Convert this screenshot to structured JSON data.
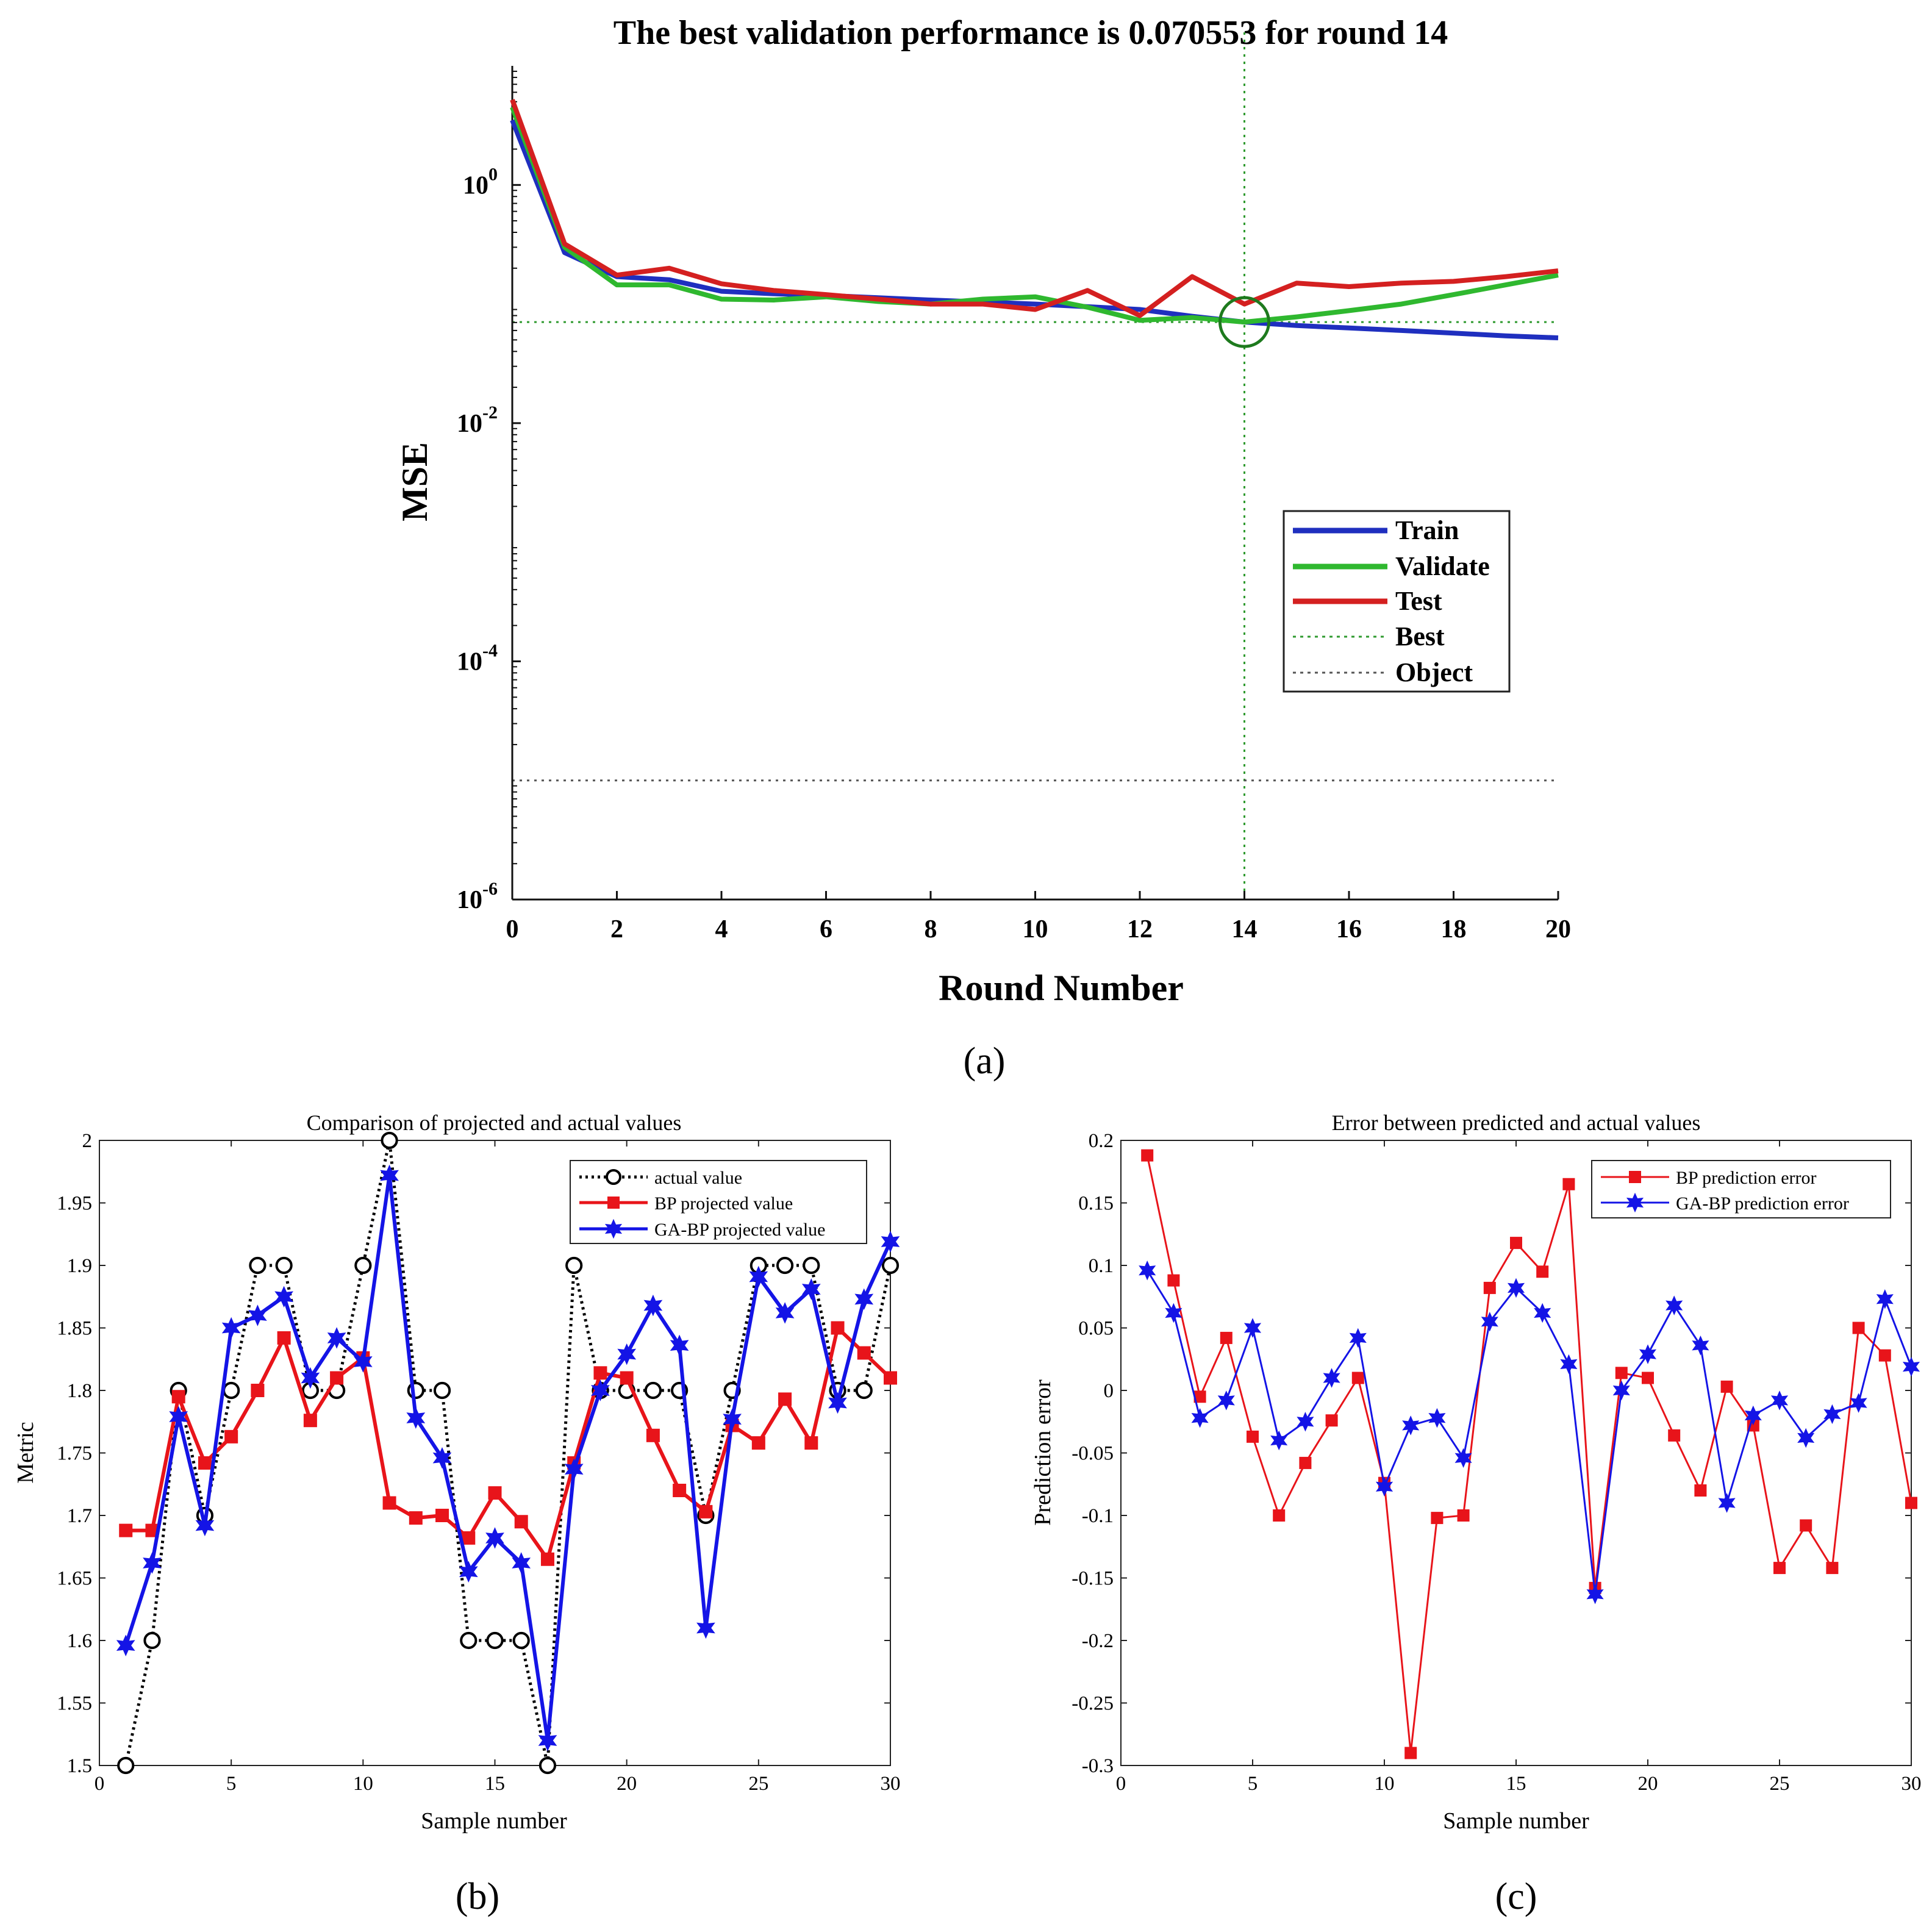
{
  "chart_data": [
    {
      "id": "a",
      "type": "line",
      "title": "The best validation performance is 0.070553 for round 14",
      "xlabel": "Round Number",
      "ylabel": "MSE",
      "caption": "(a)",
      "xlim": [
        0,
        20
      ],
      "ylim_log10": [
        -6,
        1
      ],
      "y_scale": "log",
      "xticks": [
        "0",
        "2",
        "4",
        "6",
        "8",
        "10",
        "12",
        "14",
        "16",
        "18",
        "20"
      ],
      "yticks": [
        {
          "base": "10",
          "exp": "0",
          "log": 0
        },
        {
          "base": "10",
          "exp": "-2",
          "log": -2
        },
        {
          "base": "10",
          "exp": "-4",
          "log": -4
        },
        {
          "base": "10",
          "exp": "-6",
          "log": -6
        }
      ],
      "x": [
        0,
        1,
        2,
        3,
        4,
        5,
        6,
        7,
        8,
        9,
        10,
        11,
        12,
        13,
        14,
        15,
        16,
        17,
        18,
        19,
        20
      ],
      "series": [
        {
          "name": "Train",
          "color": "#1f2fbf",
          "values": [
            3.5,
            0.27,
            0.17,
            0.16,
            0.128,
            0.122,
            0.118,
            0.113,
            0.108,
            0.104,
            0.1,
            0.095,
            0.09,
            0.079,
            0.0706,
            0.066,
            0.063,
            0.06,
            0.057,
            0.054,
            0.052
          ]
        },
        {
          "name": "Validate",
          "color": "#2fb82f",
          "values": [
            4.5,
            0.3,
            0.145,
            0.145,
            0.11,
            0.108,
            0.115,
            0.105,
            0.1,
            0.11,
            0.115,
            0.094,
            0.073,
            0.077,
            0.0706,
            0.078,
            0.088,
            0.1,
            0.12,
            0.145,
            0.175
          ]
        },
        {
          "name": "Test",
          "color": "#d42020",
          "values": [
            5.2,
            0.32,
            0.175,
            0.2,
            0.148,
            0.13,
            0.12,
            0.11,
            0.1,
            0.1,
            0.09,
            0.13,
            0.08,
            0.17,
            0.1,
            0.15,
            0.14,
            0.15,
            0.155,
            0.17,
            0.19
          ]
        }
      ],
      "best": {
        "x": 14,
        "y": 0.070553,
        "color": "#2f9a2f",
        "label": "Best"
      },
      "object": {
        "y": 1e-05,
        "color": "#555555",
        "label": "Object"
      },
      "legend": "right"
    },
    {
      "id": "b",
      "type": "line",
      "title": "Comparison of projected and actual values",
      "xlabel": "Sample number",
      "ylabel": "Metric",
      "caption": "(b)",
      "xlim": [
        0,
        30
      ],
      "ylim": [
        1.5,
        2
      ],
      "xticks": [
        0,
        5,
        10,
        15,
        20,
        25,
        30
      ],
      "yticks": [
        1.5,
        1.55,
        1.6,
        1.65,
        1.7,
        1.75,
        1.8,
        1.85,
        1.9,
        1.95,
        2
      ],
      "ytick_labels": [
        "1.5",
        "1.55",
        "1.6",
        "1.65",
        "1.7",
        "1.75",
        "1.8",
        "1.85",
        "1.9",
        "1.95",
        "2"
      ],
      "x": [
        1,
        2,
        3,
        4,
        5,
        6,
        7,
        8,
        9,
        10,
        11,
        12,
        13,
        14,
        15,
        16,
        17,
        18,
        19,
        20,
        21,
        22,
        23,
        24,
        25,
        26,
        27,
        28,
        29,
        30
      ],
      "series": [
        {
          "name": "actual value",
          "color": "#000000",
          "marker": "circle",
          "dash": "dotted",
          "values": [
            1.5,
            1.6,
            1.8,
            1.7,
            1.8,
            1.9,
            1.9,
            1.8,
            1.8,
            1.9,
            2.0,
            1.8,
            1.8,
            1.6,
            1.6,
            1.6,
            1.5,
            1.9,
            1.8,
            1.8,
            1.8,
            1.8,
            1.7,
            1.8,
            1.9,
            1.9,
            1.9,
            1.8,
            1.8,
            1.9
          ]
        },
        {
          "name": "BP projected value",
          "color": "#e8141a",
          "marker": "square",
          "values": [
            1.688,
            1.688,
            1.795,
            1.742,
            1.763,
            1.8,
            1.842,
            1.776,
            1.81,
            1.826,
            1.71,
            1.698,
            1.7,
            1.682,
            1.718,
            1.695,
            1.665,
            1.742,
            1.814,
            1.81,
            1.764,
            1.72,
            1.703,
            1.772,
            1.758,
            1.793,
            1.758,
            1.85,
            1.83,
            1.81
          ]
        },
        {
          "name": "GA-BP projected value",
          "color": "#1414e6",
          "marker": "star",
          "values": [
            1.596,
            1.662,
            1.779,
            1.692,
            1.85,
            1.86,
            1.875,
            1.81,
            1.842,
            1.823,
            1.972,
            1.778,
            1.746,
            1.655,
            1.682,
            1.662,
            1.52,
            1.737,
            1.8,
            1.829,
            1.868,
            1.836,
            1.61,
            1.777,
            1.891,
            1.862,
            1.881,
            1.79,
            1.873,
            1.919
          ]
        }
      ],
      "legend": "top-right"
    },
    {
      "id": "c",
      "type": "line",
      "title": "Error between predicted and actual values",
      "xlabel": "Sample number",
      "ylabel": "Prediction error",
      "caption": "(c)",
      "xlim": [
        0,
        30
      ],
      "ylim": [
        -0.3,
        0.2
      ],
      "xticks": [
        0,
        5,
        10,
        15,
        20,
        25,
        30
      ],
      "yticks": [
        -0.3,
        -0.25,
        -0.2,
        -0.15,
        -0.1,
        -0.05,
        0,
        0.05,
        0.1,
        0.15,
        0.2
      ],
      "ytick_labels": [
        "-0.3",
        "-0.25",
        "-0.2",
        "-0.15",
        "-0.1",
        "-0.05",
        "0",
        "0.05",
        "0.1",
        "0.15",
        "0.2"
      ],
      "x": [
        1,
        2,
        3,
        4,
        5,
        6,
        7,
        8,
        9,
        10,
        11,
        12,
        13,
        14,
        15,
        16,
        17,
        18,
        19,
        20,
        21,
        22,
        23,
        24,
        25,
        26,
        27,
        28,
        29,
        30
      ],
      "series": [
        {
          "name": "BP prediction error",
          "color": "#e8141a",
          "marker": "square",
          "values": [
            0.188,
            0.088,
            -0.005,
            0.042,
            -0.037,
            -0.1,
            -0.058,
            -0.024,
            0.01,
            -0.074,
            -0.29,
            -0.102,
            -0.1,
            0.082,
            0.118,
            0.095,
            0.165,
            -0.158,
            0.014,
            0.01,
            -0.036,
            -0.08,
            0.003,
            -0.028,
            -0.142,
            -0.108,
            -0.142,
            0.05,
            0.028,
            -0.09
          ]
        },
        {
          "name": "GA-BP prediction error",
          "color": "#1414e6",
          "marker": "star",
          "values": [
            0.096,
            0.062,
            -0.022,
            -0.008,
            0.05,
            -0.04,
            -0.025,
            0.01,
            0.042,
            -0.077,
            -0.028,
            -0.022,
            -0.054,
            0.055,
            0.082,
            0.062,
            0.021,
            -0.163,
            0.0,
            0.029,
            0.068,
            0.036,
            -0.09,
            -0.02,
            -0.008,
            -0.038,
            -0.019,
            -0.01,
            0.073,
            0.019
          ]
        }
      ],
      "legend": "top-right"
    }
  ]
}
